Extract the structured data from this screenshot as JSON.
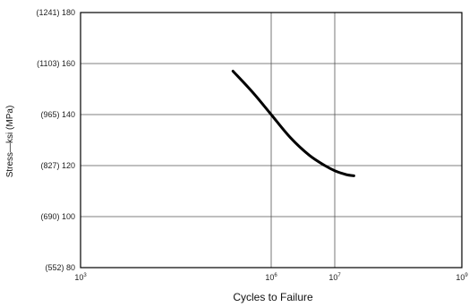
{
  "chart_data": {
    "type": "line",
    "title": "",
    "xlabel": "Cycles to Failure",
    "ylabel": "Stress—ksi (MPa)",
    "x_scale": "log",
    "xlim": [
      1000,
      1000000000
    ],
    "ylim": [
      80,
      180
    ],
    "grid": true,
    "x_ticks": [
      {
        "value": 1000,
        "base": "10",
        "exp": "3"
      },
      {
        "value": 1000000,
        "base": "10",
        "exp": "6"
      },
      {
        "value": 10000000,
        "base": "10",
        "exp": "7"
      },
      {
        "value": 1000000000,
        "base": "10",
        "exp": "9"
      }
    ],
    "y_ticks": [
      {
        "value": 180,
        "label": "(1241) 180"
      },
      {
        "value": 160,
        "label": "(1103) 160"
      },
      {
        "value": 140,
        "label": "(965) 140"
      },
      {
        "value": 120,
        "label": "(827) 120"
      },
      {
        "value": 100,
        "label": "(690) 100"
      },
      {
        "value": 80,
        "label": "(552) 80"
      }
    ],
    "series": [
      {
        "color": "#000000",
        "x": [
          250000,
          500000,
          1000000,
          2000000,
          4000000,
          7000000,
          10000000,
          15000000,
          20000000
        ],
        "y": [
          157,
          149,
          140,
          131,
          124,
          120,
          118,
          116.5,
          116
        ]
      }
    ]
  }
}
